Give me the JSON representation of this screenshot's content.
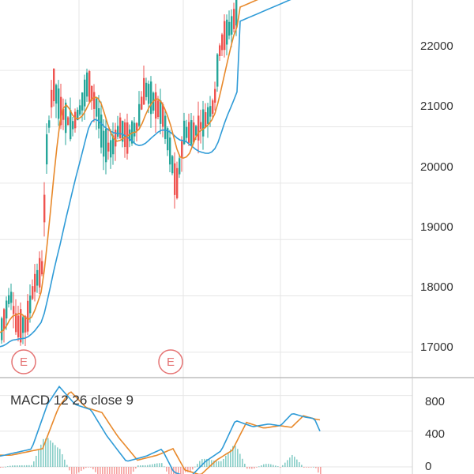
{
  "theme": {
    "up_color": "#26a69a",
    "down_color": "#ef5350",
    "ma_fast_color": "#e8892b",
    "ma_slow_color": "#2f9bd7",
    "macd_line_color": "#2f9bd7",
    "signal_line_color": "#e8892b",
    "grid_color": "#e6e6e6",
    "earnings_color": "#e57373"
  },
  "price_axis": {
    "ticks": [
      "22000",
      "21000",
      "20000",
      "19000",
      "18000",
      "17000"
    ],
    "min": 16550,
    "max": 23250
  },
  "earnings_markers": [
    "E",
    "E"
  ],
  "macd_panel": {
    "legend": "MACD 12 26 close 9",
    "ticks": [
      "800",
      "400",
      "0"
    ],
    "min": -80,
    "max": 1000
  }
}
